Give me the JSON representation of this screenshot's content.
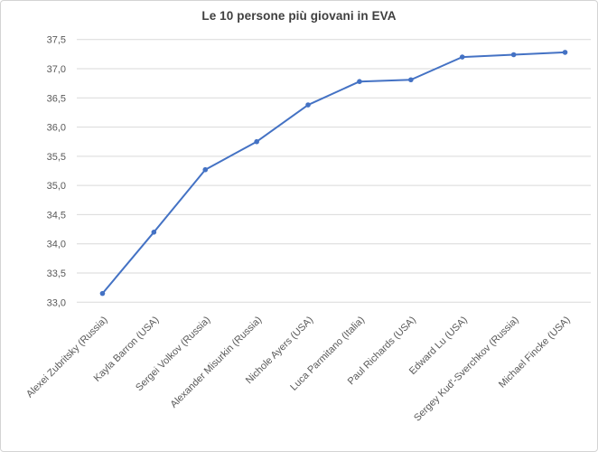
{
  "chart_data": {
    "type": "line",
    "title": "Le 10 persone più giovani in EVA",
    "categories": [
      "Alexei Zubritsky (Russia)",
      "Kayla Barron (USA)",
      "Sergei Volkov (Russia)",
      "Alexander Misurkin (Russia)",
      "Nichole Ayers (USA)",
      "Luca Parmitano (Italia)",
      "Paul Richards (USA)",
      "Edward Lu (USA)",
      "Sergey Kud'-Sverchkov (Russia)",
      "Michael Fincke (USA)"
    ],
    "values": [
      33.15,
      34.2,
      35.27,
      35.75,
      36.38,
      36.78,
      36.81,
      37.2,
      37.24,
      37.28
    ],
    "ylim": [
      33.0,
      37.5
    ],
    "ytick_step": 0.5,
    "ytick_labels": [
      "37,5",
      "37,0",
      "36,5",
      "36,0",
      "35,5",
      "35,0",
      "34,5",
      "34,0",
      "33,5",
      "33,0"
    ],
    "xlabel": "",
    "ylabel": "",
    "grid": "horizontal",
    "legend_position": "none",
    "x_label_rotation_deg": -45,
    "line_color": "#4472C4",
    "marker": "circle",
    "gridline_color": "#d9d9d9",
    "tick_label_color": "#595959",
    "title_color": "#3f3f3f",
    "decimal_separator": ","
  }
}
